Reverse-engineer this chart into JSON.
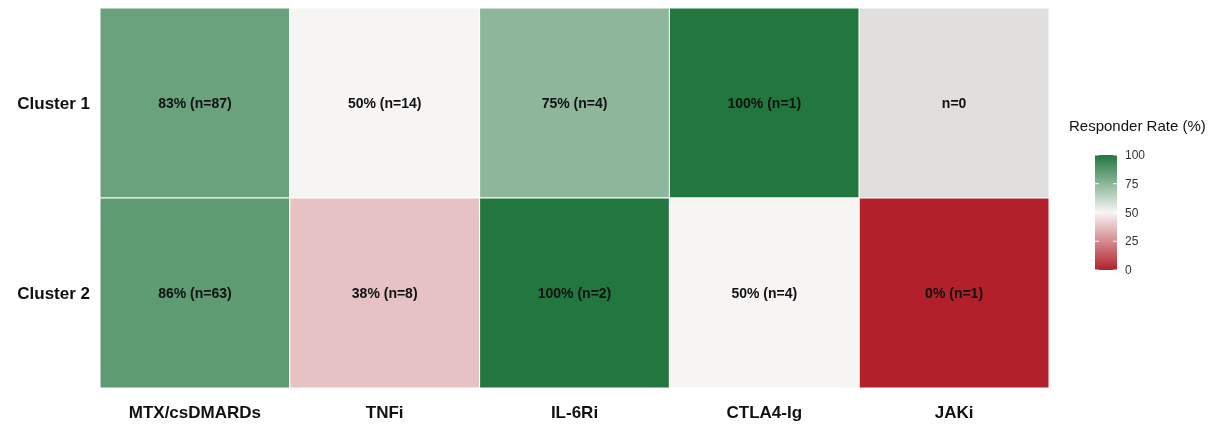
{
  "chart_data": {
    "type": "heatmap",
    "categories": [
      "MTX/csDMARDs",
      "TNFi",
      "IL-6Ri",
      "CTLA4-Ig",
      "JAKi"
    ],
    "y_categories": [
      "Cluster 1",
      "Cluster 2"
    ],
    "cells": [
      [
        83,
        50,
        75,
        100,
        null
      ],
      [
        86,
        38,
        100,
        50,
        0
      ]
    ],
    "cell_labels": [
      [
        "83% (n=87)",
        "50% (n=14)",
        "75% (n=4)",
        "100% (n=1)",
        "n=0"
      ],
      [
        "86% (n=63)",
        "38% (n=8)",
        "100% (n=2)",
        "50% (n=4)",
        "0% (n=1)"
      ]
    ],
    "clabel": "Responder Rate (%)",
    "clim": [
      0,
      100
    ],
    "cticks": [
      0,
      25,
      50,
      75,
      100
    ]
  }
}
